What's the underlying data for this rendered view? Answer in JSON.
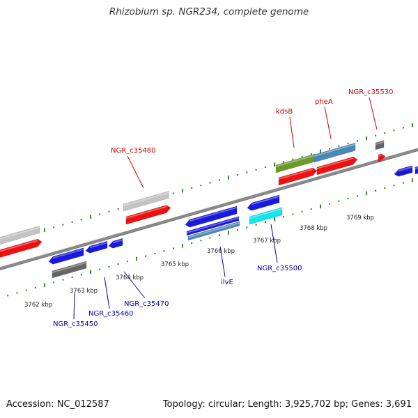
{
  "title": "Rhizobium sp. NGR234, complete genome",
  "footer": {
    "accession": "Accession: NC_012587",
    "stats": "Topology: circular; Length: 3,925,702 bp; Genes: 3,691"
  },
  "colors": {
    "backbone": "#8a8a8a",
    "ticks": "#1a7a1a",
    "forward_cds": "#ee1111",
    "reverse_cds": "#1a1adf",
    "forward_label": "#cc0000",
    "reverse_label": "#0000aa",
    "gene_grey": "#c4c4c4",
    "gene_darkgrey": "#666666",
    "gene_olive": "#6b9a2a",
    "gene_steelblue": "#4a86b6",
    "gene_cyan": "#11e5ee"
  },
  "axis": {
    "tick_labels": [
      "3762 kbp",
      "3763 kbp",
      "3764 kbp",
      "3765 kbp",
      "3766 kbp",
      "3767 kbp",
      "3768 kbp",
      "3769 kbp"
    ]
  },
  "genes_forward": [
    {
      "label": "NGR_c35480"
    },
    {
      "label": "kdsB"
    },
    {
      "label": "pheA"
    },
    {
      "label": "NGR_c35530"
    }
  ],
  "genes_reverse": [
    {
      "label": "NGR_c35450"
    },
    {
      "label": "NGR_c35460"
    },
    {
      "label": "NGR_c35470"
    },
    {
      "label": "ilvE"
    },
    {
      "label": "NGR_c35500"
    }
  ]
}
